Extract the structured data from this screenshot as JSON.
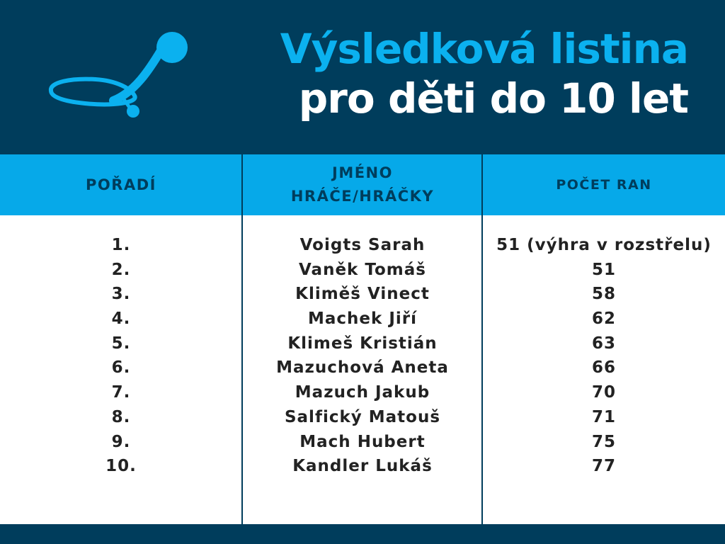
{
  "header": {
    "title_line1": "Výsledková listina",
    "title_line2": "pro děti do 10 let",
    "logo_icon": "golf-club-logo-icon",
    "colors": {
      "dark": "#003d5c",
      "accent": "#0bb1ef"
    }
  },
  "table": {
    "columns": [
      "POŘADÍ",
      "JMÉNO\nHRÁČE/HRÁČKY",
      "POČET RAN"
    ],
    "rows": [
      {
        "rank": "1.",
        "name": "Voigts Sarah",
        "score": "51 (výhra v rozstřelu)"
      },
      {
        "rank": "2.",
        "name": "Vaněk Tomáš",
        "score": "51"
      },
      {
        "rank": "3.",
        "name": "Kliměš Vinect",
        "score": "58"
      },
      {
        "rank": "4.",
        "name": "Machek Jiří",
        "score": "62"
      },
      {
        "rank": "5.",
        "name": "Klimeš Kristián",
        "score": "63"
      },
      {
        "rank": "6.",
        "name": "Mazuchová Aneta",
        "score": "66"
      },
      {
        "rank": "7.",
        "name": "Mazuch Jakub",
        "score": "70"
      },
      {
        "rank": "8.",
        "name": "Salfický Matouš",
        "score": "71"
      },
      {
        "rank": "9.",
        "name": "Mach Hubert",
        "score": "75"
      },
      {
        "rank": "10.",
        "name": "Kandler Lukáš",
        "score": "77"
      }
    ]
  }
}
